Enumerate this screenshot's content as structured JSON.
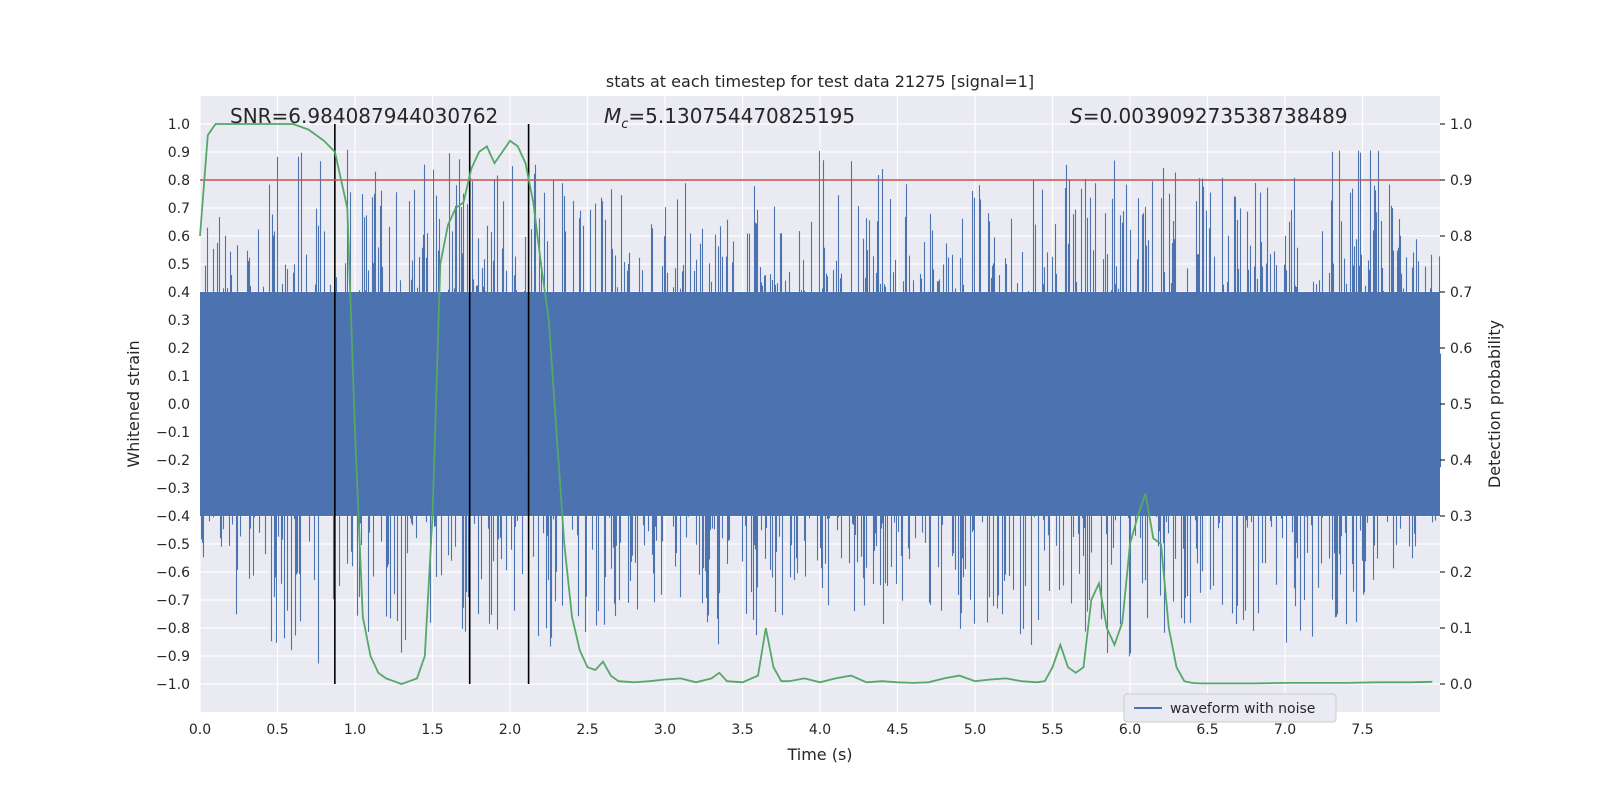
{
  "chart_data": {
    "type": "line",
    "title": "stats at each timestep for test data 21275 [signal=1]",
    "xlabel": "Time (s)",
    "ylabel": "Whitened strain",
    "ylabel_right": "Detection probability",
    "xlim": [
      0.0,
      8.0
    ],
    "ylim": [
      -1.1,
      1.1
    ],
    "ylim_right": [
      -0.05,
      1.05
    ],
    "x_ticks": [
      "0.0",
      "0.5",
      "1.0",
      "1.5",
      "2.0",
      "2.5",
      "3.0",
      "3.5",
      "4.0",
      "4.5",
      "5.0",
      "5.5",
      "6.0",
      "6.5",
      "7.0",
      "7.5"
    ],
    "y_ticks": [
      "1.0",
      "0.9",
      "0.8",
      "0.7",
      "0.6",
      "0.5",
      "0.4",
      "0.3",
      "0.2",
      "0.1",
      "0.0",
      "−0.1",
      "−0.2",
      "−0.3",
      "−0.4",
      "−0.5",
      "−0.6",
      "−0.7",
      "−0.8",
      "−0.9",
      "−1.0"
    ],
    "y_ticks_right": [
      "1.0",
      "0.9",
      "0.8",
      "0.7",
      "0.6",
      "0.5",
      "0.4",
      "0.3",
      "0.2",
      "0.1",
      "0.0"
    ],
    "grid": true,
    "annotations": {
      "snr": "SNR=6.984087944030762",
      "mc_prefix": "M",
      "mc_sub": "c",
      "mc_value": "=5.130754470825195",
      "s_prefix": "S",
      "s_value": "=0.003909273538738489"
    },
    "legend": {
      "placement": "bottom-right",
      "entries": [
        "waveform with noise"
      ]
    },
    "threshold_right": 0.9,
    "vertical_markers_x": [
      0.87,
      1.74,
      2.12
    ],
    "waveform_envelope": {
      "name": "waveform with noise",
      "color": "#4c72b0",
      "x": [
        0.0,
        0.5,
        1.0,
        1.5,
        2.0,
        2.5,
        3.0,
        3.5,
        4.0,
        4.5,
        5.0,
        5.5,
        6.0,
        6.5,
        7.0,
        7.5,
        8.0
      ],
      "upper_peak": [
        0.6,
        0.95,
        0.92,
        0.9,
        0.93,
        0.75,
        0.82,
        0.75,
        0.95,
        0.82,
        0.8,
        0.85,
        0.9,
        0.82,
        0.8,
        1.0,
        0.55
      ],
      "lower_peak": [
        -0.65,
        -0.92,
        -0.95,
        -0.85,
        -0.85,
        -0.9,
        -0.8,
        -0.9,
        -0.78,
        -0.8,
        -0.82,
        -0.88,
        -0.92,
        -0.75,
        -0.87,
        -0.8,
        -0.5
      ],
      "core_band": [
        -0.4,
        0.4
      ]
    },
    "detection_probability": {
      "color": "#55a868",
      "x": [
        0.0,
        0.05,
        0.1,
        0.2,
        0.3,
        0.4,
        0.5,
        0.6,
        0.7,
        0.8,
        0.87,
        0.95,
        1.0,
        1.05,
        1.1,
        1.15,
        1.2,
        1.25,
        1.3,
        1.35,
        1.4,
        1.45,
        1.5,
        1.55,
        1.6,
        1.65,
        1.7,
        1.75,
        1.8,
        1.85,
        1.9,
        1.95,
        2.0,
        2.05,
        2.1,
        2.15,
        2.2,
        2.25,
        2.3,
        2.35,
        2.4,
        2.45,
        2.5,
        2.55,
        2.6,
        2.65,
        2.7,
        2.8,
        2.9,
        3.0,
        3.1,
        3.2,
        3.3,
        3.35,
        3.4,
        3.5,
        3.6,
        3.65,
        3.7,
        3.75,
        3.8,
        3.9,
        4.0,
        4.1,
        4.2,
        4.3,
        4.4,
        4.5,
        4.6,
        4.7,
        4.8,
        4.9,
        5.0,
        5.1,
        5.2,
        5.3,
        5.4,
        5.45,
        5.5,
        5.55,
        5.6,
        5.65,
        5.7,
        5.75,
        5.8,
        5.85,
        5.9,
        5.95,
        6.0,
        6.05,
        6.1,
        6.15,
        6.2,
        6.25,
        6.3,
        6.35,
        6.4,
        6.45,
        6.5,
        6.6,
        6.8,
        7.0,
        7.2,
        7.4,
        7.6,
        7.8,
        7.95
      ],
      "y": [
        0.8,
        0.98,
        1.0,
        1.0,
        1.0,
        1.0,
        1.0,
        1.0,
        0.99,
        0.97,
        0.95,
        0.85,
        0.45,
        0.12,
        0.05,
        0.02,
        0.01,
        0.005,
        0.0,
        0.005,
        0.01,
        0.05,
        0.3,
        0.75,
        0.82,
        0.85,
        0.86,
        0.92,
        0.95,
        0.96,
        0.93,
        0.95,
        0.97,
        0.96,
        0.93,
        0.86,
        0.75,
        0.65,
        0.45,
        0.25,
        0.12,
        0.06,
        0.03,
        0.025,
        0.04,
        0.015,
        0.005,
        0.003,
        0.005,
        0.008,
        0.01,
        0.003,
        0.01,
        0.02,
        0.005,
        0.003,
        0.015,
        0.1,
        0.03,
        0.005,
        0.005,
        0.01,
        0.003,
        0.01,
        0.015,
        0.003,
        0.005,
        0.003,
        0.002,
        0.003,
        0.01,
        0.015,
        0.005,
        0.008,
        0.01,
        0.005,
        0.003,
        0.005,
        0.03,
        0.07,
        0.03,
        0.02,
        0.03,
        0.15,
        0.18,
        0.1,
        0.07,
        0.11,
        0.25,
        0.3,
        0.34,
        0.26,
        0.25,
        0.1,
        0.03,
        0.005,
        0.002,
        0.001,
        0.001,
        0.001,
        0.001,
        0.002,
        0.002,
        0.002,
        0.003,
        0.003,
        0.004
      ]
    }
  }
}
